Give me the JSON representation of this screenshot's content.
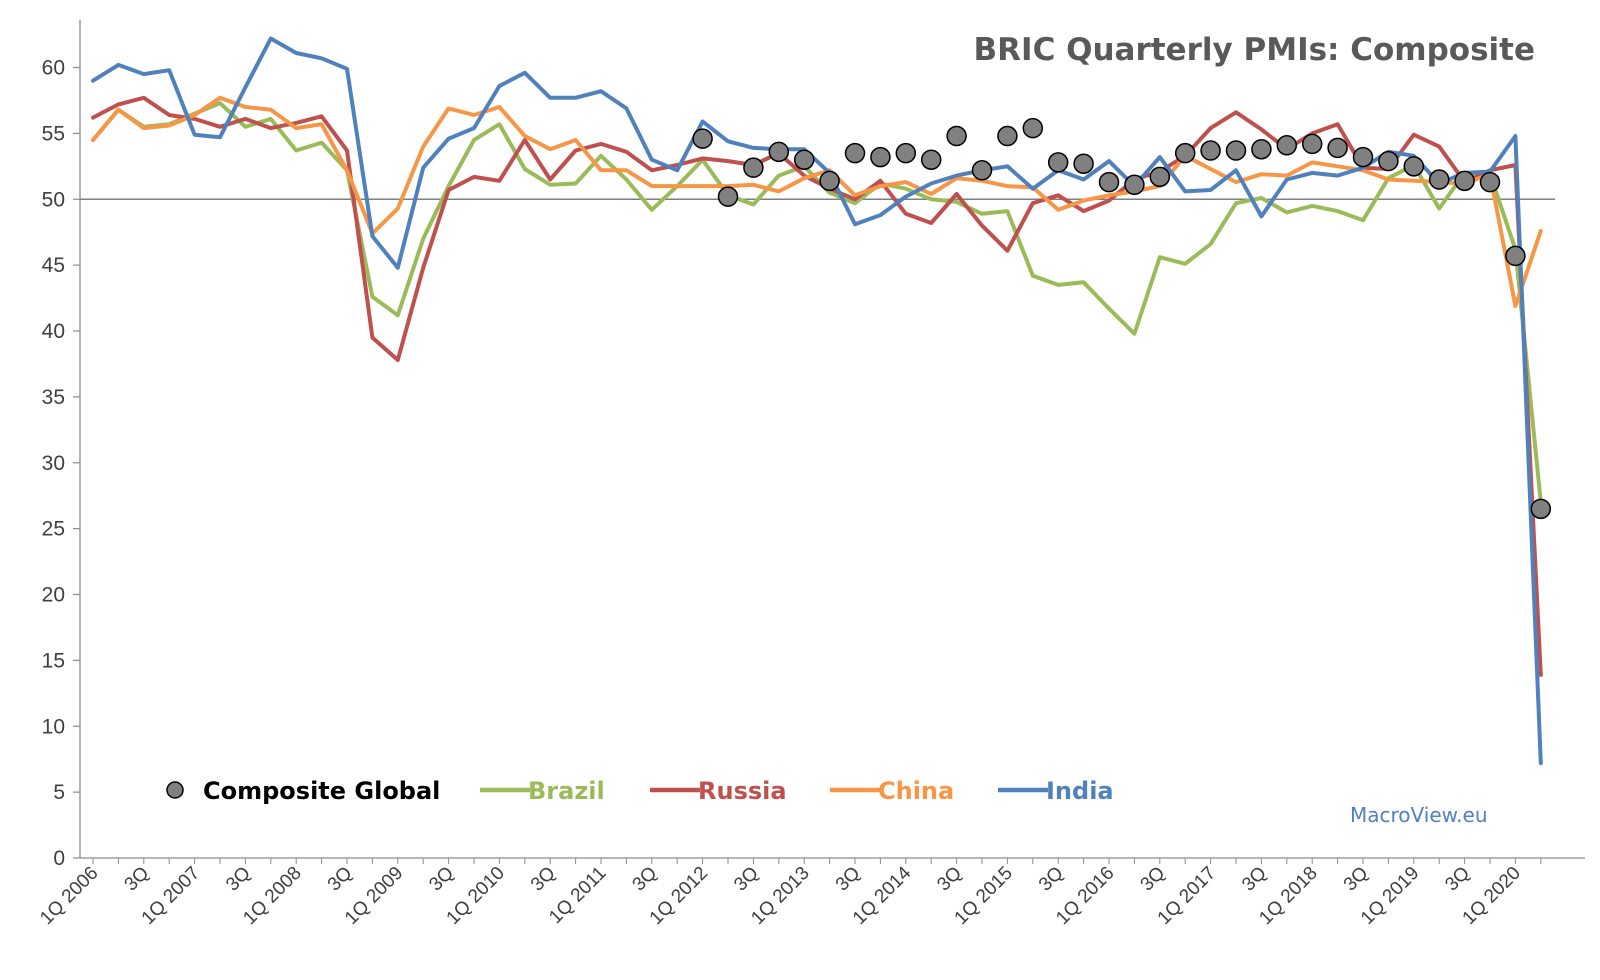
{
  "chart_data": {
    "type": "line",
    "title": "BRIC Quarterly PMIs: Composite",
    "credit": "MacroView.eu",
    "xlabel": "",
    "ylabel": "",
    "ylim": [
      0,
      63
    ],
    "yticks": [
      0,
      5,
      10,
      15,
      20,
      25,
      30,
      35,
      40,
      45,
      50,
      55,
      60
    ],
    "reference_line": 50,
    "grid": false,
    "legend_position": "bottom-left",
    "categories": [
      "1Q 2006",
      "2Q 2006",
      "3Q 2006",
      "4Q 2006",
      "1Q 2007",
      "2Q 2007",
      "3Q 2007",
      "4Q 2007",
      "1Q 2008",
      "2Q 2008",
      "3Q 2008",
      "4Q 2008",
      "1Q 2009",
      "2Q 2009",
      "3Q 2009",
      "4Q 2009",
      "1Q 2010",
      "2Q 2010",
      "3Q 2010",
      "4Q 2010",
      "1Q 2011",
      "2Q 2011",
      "3Q 2011",
      "4Q 2011",
      "1Q 2012",
      "2Q 2012",
      "3Q 2012",
      "4Q 2012",
      "1Q 2013",
      "2Q 2013",
      "3Q 2013",
      "4Q 2013",
      "1Q 2014",
      "2Q 2014",
      "3Q 2014",
      "4Q 2014",
      "1Q 2015",
      "2Q 2015",
      "3Q 2015",
      "4Q 2015",
      "1Q 2016",
      "2Q 2016",
      "3Q 2016",
      "4Q 2016",
      "1Q 2017",
      "2Q 2017",
      "3Q 2017",
      "4Q 2017",
      "1Q 2018",
      "2Q 2018",
      "3Q 2018",
      "4Q 2018",
      "1Q 2019",
      "2Q 2019",
      "3Q 2019",
      "4Q 2019",
      "1Q 2020",
      "2Q 2020"
    ],
    "tick_labels": [
      "1Q 2006",
      "3Q",
      "1Q 2007",
      "3Q",
      "1Q 2008",
      "3Q",
      "1Q 2009",
      "3Q",
      "1Q 2010",
      "3Q",
      "1Q 2011",
      "3Q",
      "1Q 2012",
      "3Q",
      "1Q 2013",
      "3Q",
      "1Q 2014",
      "3Q",
      "1Q 2015",
      "3Q",
      "1Q 2016",
      "3Q",
      "1Q 2017",
      "3Q",
      "1Q 2018",
      "3Q",
      "1Q 2019",
      "3Q",
      "1Q 2020"
    ],
    "composite_global": {
      "name": "Composite Global",
      "color": "#808080",
      "values": [
        null,
        null,
        null,
        null,
        null,
        null,
        null,
        null,
        null,
        null,
        null,
        null,
        null,
        null,
        null,
        null,
        null,
        null,
        null,
        null,
        null,
        null,
        null,
        null,
        54.6,
        50.2,
        52.4,
        53.6,
        53.0,
        51.4,
        53.5,
        53.2,
        53.5,
        53.0,
        54.8,
        52.2,
        54.8,
        55.4,
        52.8,
        52.7,
        51.3,
        51.1,
        51.7,
        53.5,
        53.7,
        53.7,
        53.8,
        54.1,
        54.2,
        53.9,
        53.2,
        52.9,
        52.5,
        51.5,
        51.4,
        51.3,
        45.7,
        26.5
      ]
    },
    "series": [
      {
        "name": "Brazil",
        "color": "#9BBB59",
        "values": [
          54.5,
          56.8,
          55.5,
          55.7,
          56.5,
          57.3,
          55.5,
          56.1,
          53.7,
          54.3,
          52.2,
          42.6,
          41.2,
          47.0,
          51.0,
          54.5,
          55.7,
          52.3,
          51.1,
          51.2,
          53.3,
          51.5,
          49.2,
          51.0,
          53.0,
          50.3,
          49.6,
          51.8,
          52.5,
          50.5,
          49.7,
          51.2,
          50.8,
          50.0,
          49.8,
          48.9,
          49.1,
          44.2,
          43.5,
          43.7,
          41.7,
          39.8,
          45.6,
          45.1,
          46.6,
          49.7,
          50.1,
          49.0,
          49.5,
          49.1,
          48.4,
          51.6,
          52.6,
          49.3,
          52.0,
          51.9,
          46.2,
          27.0
        ]
      },
      {
        "name": "Russia",
        "color": "#C0504D",
        "values": [
          56.2,
          57.2,
          57.7,
          56.4,
          56.1,
          55.5,
          56.1,
          55.4,
          55.8,
          56.3,
          53.7,
          39.5,
          37.8,
          44.8,
          50.7,
          51.7,
          51.4,
          54.5,
          51.5,
          53.7,
          54.2,
          53.6,
          52.2,
          52.6,
          53.1,
          52.9,
          52.6,
          53.5,
          51.8,
          50.8,
          50.0,
          51.4,
          48.9,
          48.2,
          50.4,
          48.0,
          46.1,
          49.7,
          50.3,
          49.1,
          49.9,
          51.5,
          52.1,
          53.3,
          55.4,
          56.6,
          55.3,
          53.8,
          55.0,
          55.7,
          52.4,
          52.3,
          54.9,
          54.0,
          51.3,
          52.2,
          52.6,
          13.9
        ]
      },
      {
        "name": "China",
        "color": "#F79646",
        "values": [
          54.5,
          56.8,
          55.4,
          55.6,
          56.4,
          57.7,
          57.0,
          56.8,
          55.4,
          55.7,
          52.2,
          47.4,
          49.3,
          54.0,
          56.9,
          56.4,
          57.0,
          54.8,
          53.8,
          54.5,
          52.2,
          52.2,
          51.0,
          51.0,
          51.0,
          51.0,
          51.1,
          50.6,
          51.6,
          52.2,
          50.3,
          51.0,
          51.3,
          50.4,
          51.6,
          51.4,
          51.0,
          50.9,
          49.2,
          49.9,
          50.3,
          50.6,
          51.0,
          53.3,
          52.3,
          51.3,
          51.9,
          51.8,
          52.8,
          52.5,
          52.2,
          51.5,
          51.4,
          51.3,
          51.2,
          51.9,
          41.9,
          47.6
        ]
      },
      {
        "name": "India",
        "color": "#4F81BD",
        "values": [
          59.0,
          60.2,
          59.5,
          59.8,
          54.9,
          54.7,
          58.5,
          62.2,
          61.1,
          60.7,
          59.9,
          47.2,
          44.8,
          52.4,
          54.6,
          55.4,
          58.6,
          59.6,
          57.7,
          57.7,
          58.2,
          56.9,
          53.0,
          52.2,
          55.9,
          54.4,
          53.9,
          53.8,
          53.8,
          52.0,
          48.1,
          48.8,
          50.2,
          51.2,
          51.8,
          52.2,
          52.5,
          50.8,
          52.2,
          51.5,
          52.9,
          51.0,
          53.2,
          50.6,
          50.7,
          52.2,
          48.7,
          51.5,
          52.0,
          51.8,
          52.4,
          53.6,
          53.3,
          51.2,
          52.0,
          52.1,
          54.8,
          7.2
        ]
      }
    ]
  }
}
